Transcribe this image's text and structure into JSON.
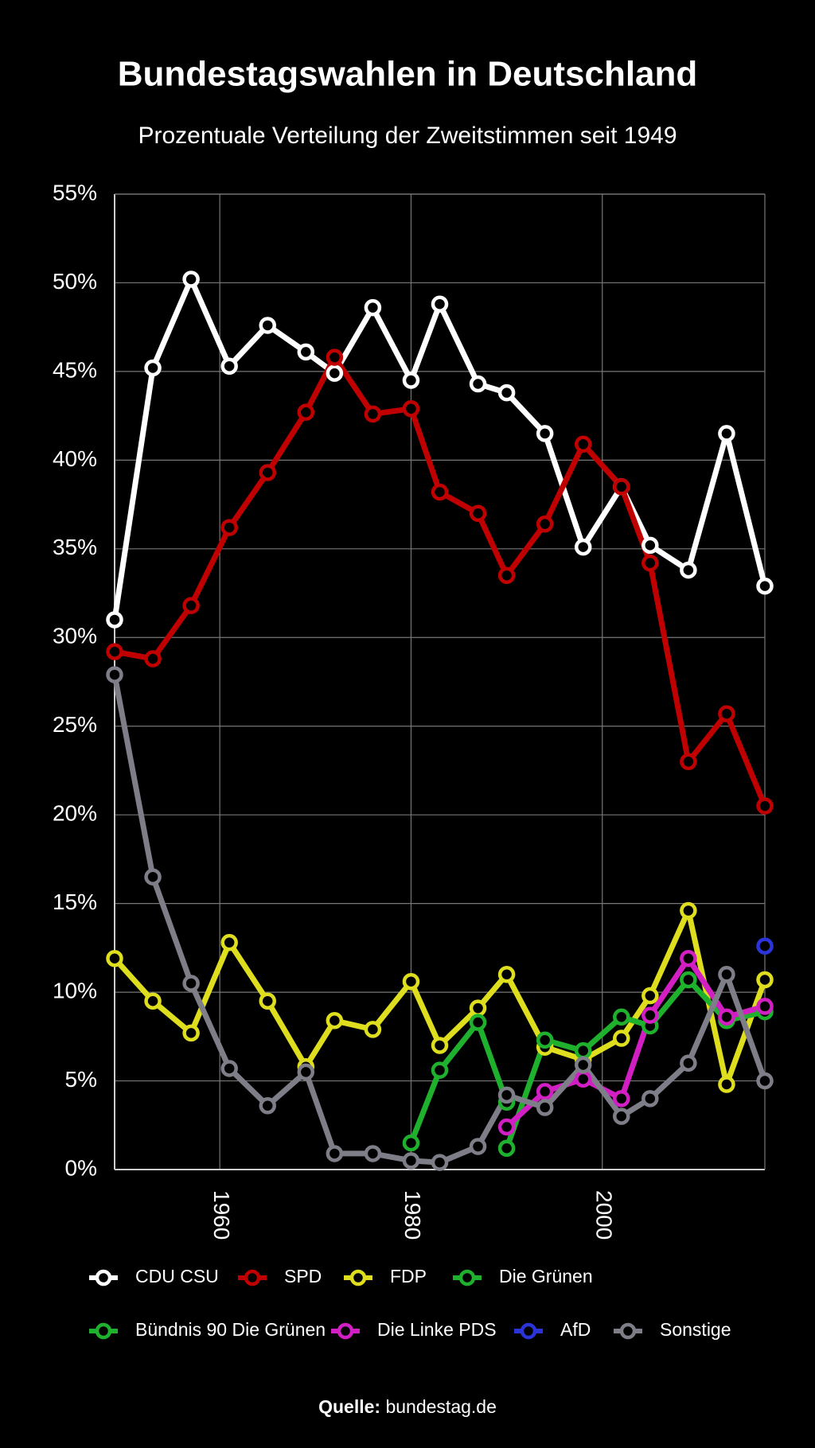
{
  "chart_data": {
    "type": "line",
    "title": "Bundestagswahlen in Deutschland",
    "subtitle": "Prozentuale Verteilung der Zweitstimmen seit 1949",
    "x": [
      1949,
      1953,
      1957,
      1961,
      1965,
      1969,
      1972,
      1976,
      1980,
      1983,
      1987,
      1990,
      1994,
      1998,
      2002,
      2005,
      2009,
      2013,
      2017
    ],
    "xlim": [
      1949,
      2017
    ],
    "xticks": [
      1960,
      1980,
      2000
    ],
    "ylim": [
      0,
      55
    ],
    "yticks": [
      {
        "value": 0,
        "label": "0%"
      },
      {
        "value": 5,
        "label": "5%"
      },
      {
        "value": 10,
        "label": "10%"
      },
      {
        "value": 15,
        "label": "15%"
      },
      {
        "value": 20,
        "label": "20%"
      },
      {
        "value": 25,
        "label": "25%"
      },
      {
        "value": 30,
        "label": "30%"
      },
      {
        "value": 35,
        "label": "35%"
      },
      {
        "value": 40,
        "label": "40%"
      },
      {
        "value": 45,
        "label": "45%"
      },
      {
        "value": 50,
        "label": "50%"
      },
      {
        "value": 55,
        "label": "55%"
      }
    ],
    "grid": true,
    "series": [
      {
        "name": "CDU CSU",
        "color": "#ffffff",
        "values": [
          31.0,
          45.2,
          50.2,
          45.3,
          47.6,
          46.1,
          44.9,
          48.6,
          44.5,
          48.8,
          44.3,
          43.8,
          41.5,
          35.1,
          38.5,
          35.2,
          33.8,
          41.5,
          32.9
        ]
      },
      {
        "name": "SPD",
        "color": "#c00000",
        "values": [
          29.2,
          28.8,
          31.8,
          36.2,
          39.3,
          42.7,
          45.8,
          42.6,
          42.9,
          38.2,
          37.0,
          33.5,
          36.4,
          40.9,
          38.5,
          34.2,
          23.0,
          25.7,
          20.5
        ]
      },
      {
        "name": "FDP",
        "color": "#dede1e",
        "values": [
          11.9,
          9.5,
          7.7,
          12.8,
          9.5,
          5.8,
          8.4,
          7.9,
          10.6,
          7.0,
          9.1,
          11.0,
          6.9,
          6.2,
          7.4,
          9.8,
          14.6,
          4.8,
          10.7
        ]
      },
      {
        "name": "Die Grünen",
        "color": "#1fb02e",
        "values": [
          null,
          null,
          null,
          null,
          null,
          null,
          null,
          null,
          1.5,
          5.6,
          8.3,
          3.8,
          null,
          null,
          null,
          null,
          null,
          null,
          null
        ]
      },
      {
        "name": "Bündnis 90 Die Grünen",
        "color": "#1fb02e",
        "values": [
          null,
          null,
          null,
          null,
          null,
          null,
          null,
          null,
          null,
          null,
          null,
          1.2,
          7.3,
          6.7,
          8.6,
          8.1,
          10.7,
          8.4,
          8.9
        ]
      },
      {
        "name": "Die Linke PDS",
        "color": "#d21fc4",
        "values": [
          null,
          null,
          null,
          null,
          null,
          null,
          null,
          null,
          null,
          null,
          null,
          2.4,
          4.4,
          5.1,
          4.0,
          8.7,
          11.9,
          8.6,
          9.2
        ]
      },
      {
        "name": "AfD",
        "color": "#2a34d8",
        "values": [
          null,
          null,
          null,
          null,
          null,
          null,
          null,
          null,
          null,
          null,
          null,
          null,
          null,
          null,
          null,
          null,
          null,
          null,
          12.6
        ]
      },
      {
        "name": "Sonstige",
        "color": "#7e7e88",
        "values": [
          27.9,
          16.5,
          10.5,
          5.7,
          3.6,
          5.5,
          0.9,
          0.9,
          0.5,
          0.4,
          1.3,
          4.2,
          3.5,
          5.9,
          3.0,
          4.0,
          6.0,
          11.0,
          5.0
        ]
      }
    ],
    "source_label": "Quelle:",
    "source": "bundestag.de"
  }
}
